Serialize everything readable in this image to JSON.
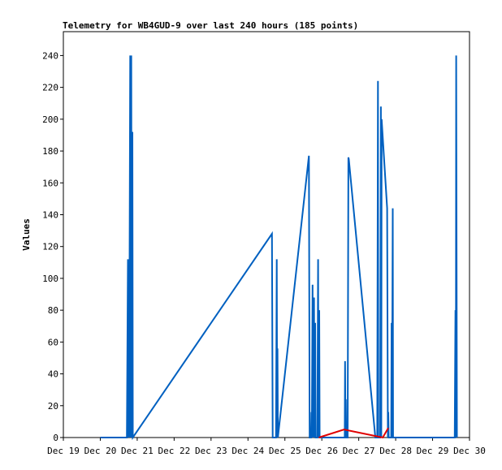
{
  "chart_data": {
    "type": "line",
    "title": "Telemetry for WB4GUD-9 over last 240 hours (185 points)",
    "xlabel": "",
    "ylabel": "Values",
    "x_ticks": [
      "Dec 19",
      "Dec 20",
      "Dec 21",
      "Dec 22",
      "Dec 23",
      "Dec 24",
      "Dec 25",
      "Dec 26",
      "Dec 27",
      "Dec 28",
      "Dec 29",
      "Dec 30"
    ],
    "xlim": [
      19.0,
      30.0
    ],
    "ylim": [
      0,
      255
    ],
    "y_ticks": [
      0,
      20,
      40,
      60,
      80,
      100,
      120,
      140,
      160,
      180,
      200,
      220,
      240
    ],
    "grid": false,
    "series": [
      {
        "color": "#0060c0",
        "points": [
          [
            20.0,
            0
          ],
          [
            20.72,
            0
          ],
          [
            20.75,
            112
          ],
          [
            20.76,
            0
          ],
          [
            20.77,
            56
          ],
          [
            20.78,
            0
          ],
          [
            20.81,
            240
          ],
          [
            20.82,
            0
          ],
          [
            20.84,
            240
          ],
          [
            20.85,
            0
          ],
          [
            20.87,
            192
          ],
          [
            20.88,
            0
          ],
          [
            24.65,
            128
          ],
          [
            24.67,
            0
          ],
          [
            24.76,
            0
          ],
          [
            24.78,
            112
          ],
          [
            24.79,
            0
          ],
          [
            24.8,
            56
          ],
          [
            24.81,
            0
          ],
          [
            25.65,
            177
          ],
          [
            25.67,
            0
          ],
          [
            25.71,
            0
          ],
          [
            25.72,
            16
          ],
          [
            25.73,
            0
          ],
          [
            25.75,
            96
          ],
          [
            25.76,
            0
          ],
          [
            25.79,
            88
          ],
          [
            25.8,
            0
          ],
          [
            25.82,
            72
          ],
          [
            25.83,
            0
          ],
          [
            25.88,
            0
          ],
          [
            25.9,
            112
          ],
          [
            25.91,
            0
          ],
          [
            25.93,
            80
          ],
          [
            25.94,
            0
          ],
          [
            26.62,
            0
          ],
          [
            26.63,
            48
          ],
          [
            26.64,
            0
          ],
          [
            26.65,
            24
          ],
          [
            26.66,
            0
          ],
          [
            26.7,
            0
          ],
          [
            26.72,
            176
          ],
          [
            26.73,
            175
          ],
          [
            27.45,
            0
          ],
          [
            27.5,
            0
          ],
          [
            27.52,
            224
          ],
          [
            27.53,
            0
          ],
          [
            27.58,
            0
          ],
          [
            27.6,
            208
          ],
          [
            27.61,
            0
          ],
          [
            27.62,
            200
          ],
          [
            27.77,
            144
          ],
          [
            27.79,
            0
          ],
          [
            27.8,
            16
          ],
          [
            27.81,
            0
          ],
          [
            27.88,
            0
          ],
          [
            27.89,
            72
          ],
          [
            27.9,
            0
          ],
          [
            27.92,
            144
          ],
          [
            27.93,
            0
          ],
          [
            29.5,
            0
          ],
          [
            29.6,
            0
          ],
          [
            29.62,
            80
          ],
          [
            29.63,
            0
          ],
          [
            29.64,
            240
          ],
          [
            29.66,
            0
          ]
        ]
      },
      {
        "color": "#e00000",
        "points": [
          [
            25.92,
            0
          ],
          [
            26.6,
            5
          ],
          [
            27.65,
            0
          ],
          [
            27.8,
            6
          ]
        ]
      }
    ]
  }
}
